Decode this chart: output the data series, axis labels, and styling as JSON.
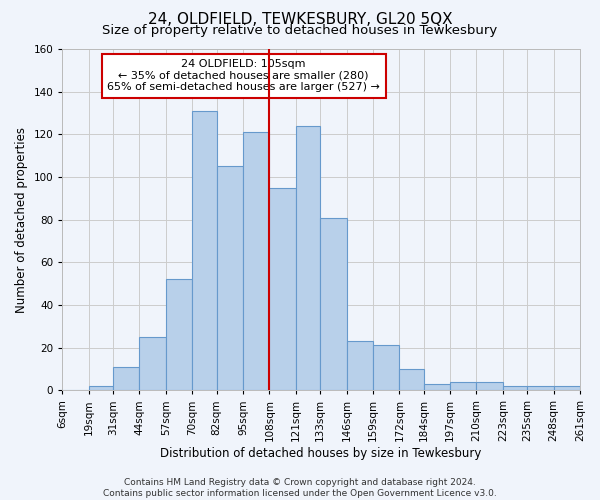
{
  "title": "24, OLDFIELD, TEWKESBURY, GL20 5QX",
  "subtitle": "Size of property relative to detached houses in Tewkesbury",
  "xlabel": "Distribution of detached houses by size in Tewkesbury",
  "ylabel": "Number of detached properties",
  "footer_line1": "Contains HM Land Registry data © Crown copyright and database right 2024.",
  "footer_line2": "Contains public sector information licensed under the Open Government Licence v3.0.",
  "bin_labels": [
    "6sqm",
    "19sqm",
    "31sqm",
    "44sqm",
    "57sqm",
    "70sqm",
    "82sqm",
    "95sqm",
    "108sqm",
    "121sqm",
    "133sqm",
    "146sqm",
    "159sqm",
    "172sqm",
    "184sqm",
    "197sqm",
    "210sqm",
    "223sqm",
    "235sqm",
    "248sqm",
    "261sqm"
  ],
  "bar_heights": [
    0,
    2,
    11,
    25,
    52,
    131,
    105,
    121,
    95,
    124,
    81,
    23,
    21,
    10,
    3,
    4,
    4,
    2,
    2,
    2
  ],
  "bar_color": "#b8d0ea",
  "bar_edge_color": "#6699cc",
  "annotation_line1": "24 OLDFIELD: 105sqm",
  "annotation_line2": "← 35% of detached houses are smaller (280)",
  "annotation_line3": "65% of semi-detached houses are larger (527) →",
  "vline_x": 108,
  "vline_color": "#cc0000",
  "bin_edges": [
    6,
    19,
    31,
    44,
    57,
    70,
    82,
    95,
    108,
    121,
    133,
    146,
    159,
    172,
    184,
    197,
    210,
    223,
    235,
    248,
    261
  ],
  "ylim": [
    0,
    160
  ],
  "yticks": [
    0,
    20,
    40,
    60,
    80,
    100,
    120,
    140,
    160
  ],
  "grid_color": "#cccccc",
  "background_color": "#f0f4fb",
  "axes_background": "#f0f4fb",
  "annotation_box_color": "#ffffff",
  "annotation_box_edge": "#cc0000",
  "title_fontsize": 11,
  "subtitle_fontsize": 9.5,
  "axis_label_fontsize": 8.5,
  "tick_fontsize": 7.5,
  "footer_fontsize": 6.5
}
